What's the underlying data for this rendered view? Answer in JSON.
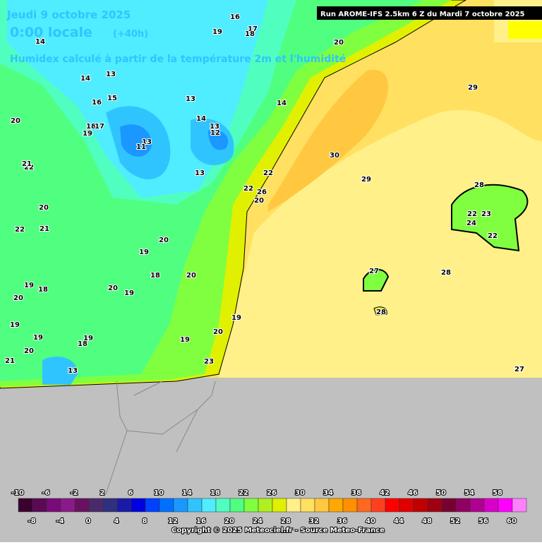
{
  "header": {
    "date": "Jeudi 9 octobre 2025",
    "time": "0:00 locale",
    "lead": "(+40h)",
    "subtitle": "Humidex calculé à partir de la température 2m et l'humidité"
  },
  "run_label": "Run AROME-IFS 2.5km 6 Z du Mardi 7 octobre 2025",
  "map_labels": [
    "16",
    "17",
    "18",
    "19",
    "20",
    "14",
    "13",
    "14",
    "16",
    "15",
    "13",
    "14",
    "20",
    "18",
    "17",
    "19",
    "14",
    "13",
    "12",
    "13",
    "11",
    "13",
    "22",
    "21",
    "30",
    "29",
    "29",
    "28",
    "22",
    "23",
    "24",
    "22",
    "27",
    "28",
    "28",
    "27",
    "20",
    "22",
    "21",
    "20",
    "19",
    "18",
    "20",
    "19",
    "18",
    "20",
    "19",
    "20",
    "19",
    "19",
    "20",
    "21",
    "19",
    "18",
    "13",
    "19",
    "20",
    "19",
    "23",
    "22",
    "26",
    "20",
    "22"
  ],
  "colorbar": {
    "ticks": [
      -10,
      -8,
      -6,
      -4,
      -2,
      0,
      2,
      4,
      6,
      8,
      10,
      12,
      14,
      16,
      18,
      20,
      22,
      24,
      26,
      28,
      30,
      32,
      34,
      36,
      38,
      40,
      42,
      44,
      46,
      48,
      50,
      52,
      54,
      56,
      58,
      60
    ],
    "colors": [
      "#3a0030",
      "#5a0a55",
      "#7a0a7a",
      "#8a1a8a",
      "#6a1060",
      "#4a2a6a",
      "#303080",
      "#1a1aa8",
      "#0000e0",
      "#0040ff",
      "#0070ff",
      "#1a98ff",
      "#30c4ff",
      "#50ecff",
      "#50ffc0",
      "#50ff80",
      "#80ff40",
      "#b0f020",
      "#e0f000",
      "#fff08a",
      "#ffe060",
      "#ffc840",
      "#ffa800",
      "#ff9000",
      "#ff6820",
      "#ff4020",
      "#ff0000",
      "#e00000",
      "#c00000",
      "#a00010",
      "#780030",
      "#900060",
      "#b00090",
      "#d800c8",
      "#ff00ff",
      "#ff80ff"
    ]
  },
  "footer": "Copyright © 2025 Meteociel.fr - Source Meteo-France"
}
